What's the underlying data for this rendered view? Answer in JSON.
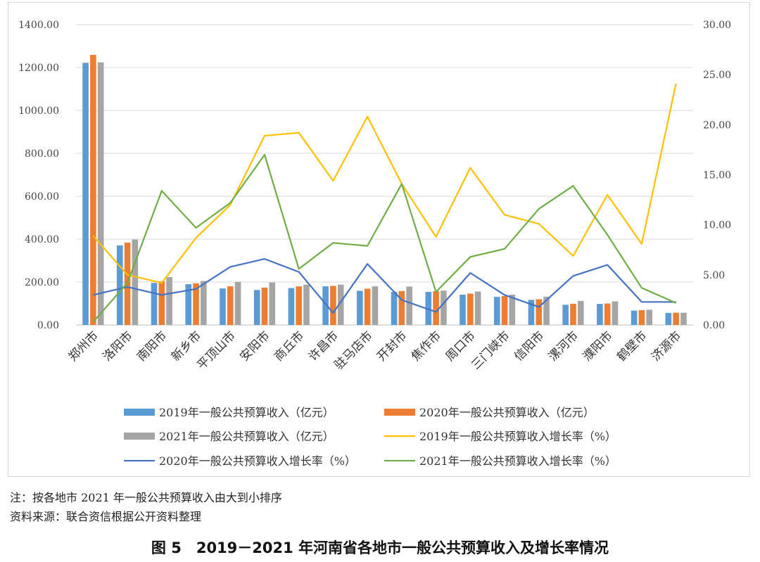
{
  "chart_data": {
    "type": "bar",
    "categories": [
      "郑州市",
      "洛阳市",
      "南阳市",
      "新乡市",
      "平顶山市",
      "安阳市",
      "商丘市",
      "许昌市",
      "驻马店市",
      "开封市",
      "焦作市",
      "周口市",
      "三门峡市",
      "信阳市",
      "漯河市",
      "濮阳市",
      "鹤壁市",
      "济源市"
    ],
    "bar_series": [
      {
        "name": "2019年一般公共预算收入（亿元）",
        "color": "#5B9BD5",
        "values": [
          1222,
          371,
          196,
          190,
          170,
          163,
          172,
          180,
          159,
          154,
          154,
          141,
          131,
          117,
          94,
          98,
          67,
          56
        ]
      },
      {
        "name": "2020年一般公共预算收入（亿元）",
        "color": "#ED7D31",
        "values": [
          1259,
          384,
          203,
          194,
          180,
          174,
          180,
          182,
          169,
          158,
          157,
          146,
          135,
          120,
          99,
          100,
          69,
          57
        ]
      },
      {
        "name": "2021年一般公共预算收入（亿元）",
        "color": "#A5A5A5",
        "values": [
          1224,
          398,
          223,
          205,
          201,
          198,
          188,
          188,
          180,
          179,
          160,
          156,
          141,
          132,
          112,
          110,
          71,
          57
        ]
      }
    ],
    "line_series": [
      {
        "name": "2019年一般公共预算收入增长率（%）",
        "color": "#FFC000",
        "values": [
          8.9,
          5.0,
          4.2,
          8.7,
          12.0,
          18.9,
          19.2,
          14.4,
          20.8,
          14.1,
          8.8,
          15.7,
          11.0,
          10.1,
          6.9,
          13.0,
          8.1,
          24.1
        ]
      },
      {
        "name": "2020年一般公共预算收入增长率（%）",
        "color": "#4472C4",
        "values": [
          3.0,
          3.8,
          3.0,
          3.6,
          5.8,
          6.6,
          5.3,
          1.2,
          6.1,
          2.5,
          1.3,
          5.2,
          3.0,
          1.8,
          4.9,
          6.0,
          2.3,
          2.3
        ]
      },
      {
        "name": "2021年一般公共预算收入增长率（%）",
        "color": "#70AD47",
        "values": [
          0.3,
          4.2,
          13.4,
          9.7,
          12.2,
          17.0,
          5.6,
          8.2,
          7.9,
          14.1,
          3.3,
          6.8,
          7.6,
          11.6,
          13.9,
          9.0,
          3.7,
          2.2
        ]
      }
    ],
    "y_left": {
      "min": 0,
      "max": 1400,
      "ticks": [
        "0.00",
        "200.00",
        "400.00",
        "600.00",
        "800.00",
        "1000.00",
        "1200.00",
        "1400.00"
      ]
    },
    "y_right": {
      "min": 0,
      "max": 30,
      "ticks": [
        "0.00",
        "5.00",
        "10.00",
        "15.00",
        "20.00",
        "25.00",
        "30.00"
      ]
    },
    "grid": true,
    "legend_position": "bottom"
  },
  "notes": {
    "line1": "注：按各地市 2021 年一般公共预算收入由大到小排序",
    "line2": "资料来源：联合资信根据公开资料整理"
  },
  "caption": "图 5　2019－2021 年河南省各地市一般公共预算收入及增长率情况"
}
